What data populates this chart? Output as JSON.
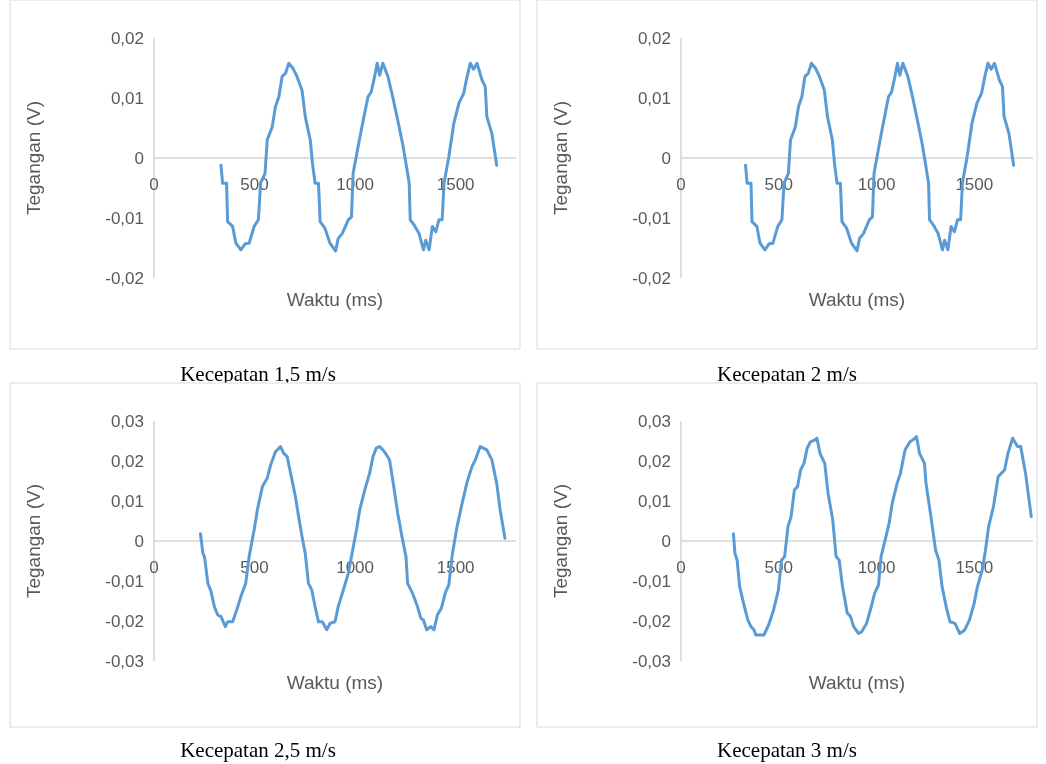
{
  "chart_data": [
    {
      "type": "line",
      "title": "Kecepatan 1,5 m/s",
      "xlabel": "Waktu (ms)",
      "ylabel": "Tegangan (V)",
      "color": "#5b9bd5",
      "xlim": [
        0,
        1800
      ],
      "xticks": [
        0,
        500,
        1000,
        1500
      ],
      "ylim": [
        -0.02,
        0.02
      ],
      "yticks": [
        {
          "value": -0.02,
          "label": "-0,02"
        },
        {
          "value": -0.01,
          "label": "-0,01"
        },
        {
          "value": 0,
          "label": "0"
        },
        {
          "value": 0.01,
          "label": "0,01"
        },
        {
          "value": 0.02,
          "label": "0,02"
        }
      ],
      "x": [
        333,
        341,
        361,
        366,
        391,
        407,
        432,
        453,
        473,
        498,
        519,
        530,
        552,
        563,
        588,
        604,
        621,
        637,
        654,
        670,
        690,
        711,
        736,
        752,
        777,
        788,
        801,
        818,
        826,
        850,
        875,
        903,
        916,
        936,
        966,
        982,
        990,
        1015,
        1031,
        1064,
        1080,
        1097,
        1110,
        1122,
        1138,
        1163,
        1187,
        1212,
        1236,
        1253,
        1269,
        1274,
        1294,
        1318,
        1340,
        1351,
        1368,
        1384,
        1401,
        1417,
        1433,
        1442,
        1466,
        1491,
        1516,
        1540,
        1557,
        1573,
        1589,
        1606,
        1631,
        1647,
        1655,
        1680,
        1704
      ],
      "values": [
        -0.0012,
        -0.0042,
        -0.0042,
        -0.0106,
        -0.0114,
        -0.0142,
        -0.0153,
        -0.0143,
        -0.0142,
        -0.0114,
        -0.0103,
        -0.0042,
        -0.0026,
        0.003,
        0.0052,
        0.0086,
        0.0102,
        0.0136,
        0.0141,
        0.0158,
        0.015,
        0.0136,
        0.0113,
        0.0069,
        0.003,
        -0.0009,
        -0.0042,
        -0.0042,
        -0.0106,
        -0.0117,
        -0.0142,
        -0.0155,
        -0.0134,
        -0.0126,
        -0.0103,
        -0.0098,
        -0.0026,
        0.0019,
        0.0047,
        0.0102,
        0.011,
        0.0136,
        0.0158,
        0.0138,
        0.0158,
        0.0136,
        0.0102,
        0.0063,
        0.0024,
        -0.0009,
        -0.0042,
        -0.0103,
        -0.0112,
        -0.0126,
        -0.0153,
        -0.0137,
        -0.0153,
        -0.0114,
        -0.0123,
        -0.0103,
        -0.0103,
        -0.0042,
        0.0002,
        0.0058,
        0.0091,
        0.0108,
        0.0136,
        0.0158,
        0.0148,
        0.0158,
        0.013,
        0.0119,
        0.0069,
        0.0041,
        -0.0012
      ]
    },
    {
      "type": "line",
      "title": "Kecepatan 2 m/s",
      "xlabel": "Waktu (ms)",
      "ylabel": "Tegangan (V)",
      "color": "#5b9bd5",
      "xlim": [
        0,
        1800
      ],
      "xticks": [
        0,
        500,
        1000,
        1500
      ],
      "ylim": [
        -0.02,
        0.02
      ],
      "yticks": [
        {
          "value": -0.02,
          "label": "-0,02"
        },
        {
          "value": -0.01,
          "label": "-0,01"
        },
        {
          "value": 0,
          "label": "0"
        },
        {
          "value": 0.01,
          "label": "0,01"
        },
        {
          "value": 0.02,
          "label": "0,02"
        }
      ],
      "x": [
        330,
        338,
        358,
        363,
        388,
        404,
        429,
        450,
        470,
        495,
        516,
        527,
        549,
        560,
        585,
        601,
        618,
        634,
        651,
        667,
        687,
        708,
        733,
        749,
        774,
        785,
        798,
        815,
        823,
        847,
        872,
        900,
        913,
        933,
        963,
        979,
        987,
        1012,
        1028,
        1061,
        1077,
        1094,
        1107,
        1119,
        1135,
        1160,
        1184,
        1209,
        1233,
        1250,
        1266,
        1271,
        1291,
        1315,
        1337,
        1348,
        1365,
        1381,
        1398,
        1414,
        1430,
        1439,
        1463,
        1488,
        1513,
        1537,
        1554,
        1570,
        1586,
        1603,
        1628,
        1644,
        1652,
        1677,
        1701
      ],
      "values": [
        -0.0012,
        -0.0042,
        -0.0042,
        -0.0106,
        -0.0114,
        -0.0142,
        -0.0153,
        -0.0143,
        -0.0142,
        -0.0114,
        -0.0103,
        -0.0042,
        -0.0026,
        0.003,
        0.0052,
        0.0086,
        0.0102,
        0.0136,
        0.0141,
        0.0158,
        0.015,
        0.0136,
        0.0113,
        0.0069,
        0.003,
        -0.0009,
        -0.0042,
        -0.0042,
        -0.0106,
        -0.0117,
        -0.0142,
        -0.0155,
        -0.0134,
        -0.0126,
        -0.0103,
        -0.0098,
        -0.0026,
        0.0019,
        0.0047,
        0.0102,
        0.011,
        0.0136,
        0.0158,
        0.0138,
        0.0158,
        0.0136,
        0.0102,
        0.0063,
        0.0024,
        -0.0009,
        -0.0042,
        -0.0103,
        -0.0112,
        -0.0126,
        -0.0153,
        -0.0137,
        -0.0153,
        -0.0114,
        -0.0123,
        -0.0103,
        -0.0103,
        -0.0042,
        0.0002,
        0.0058,
        0.0091,
        0.0108,
        0.0136,
        0.0158,
        0.0148,
        0.0158,
        0.013,
        0.0119,
        0.0069,
        0.0041,
        -0.0012
      ]
    },
    {
      "type": "line",
      "title": "Kecepatan 2,5 m/s",
      "xlabel": "Waktu (ms)",
      "ylabel": "Tegangan (V)",
      "color": "#5b9bd5",
      "xlim": [
        0,
        1800
      ],
      "xticks": [
        0,
        500,
        1000,
        1500
      ],
      "ylim": [
        -0.03,
        0.03
      ],
      "yticks": [
        {
          "value": -0.03,
          "label": "-0,03"
        },
        {
          "value": -0.02,
          "label": "-0,02"
        },
        {
          "value": -0.01,
          "label": "-0,01"
        },
        {
          "value": 0,
          "label": "0"
        },
        {
          "value": 0.01,
          "label": "0,01"
        },
        {
          "value": 0.02,
          "label": "0,02"
        },
        {
          "value": 0.03,
          "label": "0,03"
        }
      ],
      "x": [
        231,
        243,
        251,
        268,
        284,
        300,
        317,
        333,
        355,
        366,
        391,
        411,
        432,
        456,
        473,
        498,
        514,
        539,
        563,
        580,
        604,
        629,
        645,
        662,
        686,
        703,
        719,
        736,
        752,
        768,
        785,
        801,
        818,
        837,
        859,
        875,
        900,
        916,
        941,
        966,
        982,
        1007,
        1023,
        1048,
        1072,
        1089,
        1105,
        1122,
        1146,
        1171,
        1187,
        1212,
        1236,
        1253,
        1261,
        1286,
        1310,
        1327,
        1340,
        1356,
        1376,
        1392,
        1409,
        1429,
        1450,
        1466,
        1483,
        1507,
        1532,
        1557,
        1581,
        1598,
        1622,
        1655,
        1680,
        1704,
        1721,
        1745
      ],
      "values": [
        0.0018,
        -0.0031,
        -0.0039,
        -0.0106,
        -0.0127,
        -0.0164,
        -0.0185,
        -0.0189,
        -0.0214,
        -0.0202,
        -0.0202,
        -0.0173,
        -0.0139,
        -0.0106,
        -0.0039,
        0.0028,
        0.0078,
        0.0136,
        0.0157,
        0.019,
        0.0223,
        0.0236,
        0.0219,
        0.0211,
        0.0153,
        0.0111,
        0.0061,
        0.0011,
        -0.0031,
        -0.0106,
        -0.0123,
        -0.0164,
        -0.0202,
        -0.0202,
        -0.0222,
        -0.0206,
        -0.0202,
        -0.0164,
        -0.0123,
        -0.0081,
        -0.0039,
        0.0028,
        0.0078,
        0.0128,
        0.0169,
        0.0211,
        0.0232,
        0.0236,
        0.0223,
        0.0203,
        0.0153,
        0.0069,
        0.0003,
        -0.0039,
        -0.0106,
        -0.0131,
        -0.0164,
        -0.0193,
        -0.0198,
        -0.0222,
        -0.0214,
        -0.0222,
        -0.0185,
        -0.0168,
        -0.0127,
        -0.011,
        -0.0035,
        0.0036,
        0.0094,
        0.0148,
        0.0186,
        0.0203,
        0.0236,
        0.0228,
        0.0203,
        0.0144,
        0.0078,
        0.0007
      ]
    },
    {
      "type": "line",
      "title": "Kecepatan 3 m/s",
      "xlabel": "Waktu (ms)",
      "ylabel": "Tegangan (V)",
      "color": "#5b9bd5",
      "xlim": [
        0,
        1800
      ],
      "xticks": [
        0,
        500,
        1000,
        1500
      ],
      "ylim": [
        -0.03,
        0.03
      ],
      "yticks": [
        {
          "value": -0.03,
          "label": "-0,03"
        },
        {
          "value": -0.02,
          "label": "-0,02"
        },
        {
          "value": -0.01,
          "label": "-0,01"
        },
        {
          "value": 0,
          "label": "0"
        },
        {
          "value": 0.01,
          "label": "0,01"
        },
        {
          "value": 0.02,
          "label": "0,02"
        },
        {
          "value": 0.03,
          "label": "0,03"
        }
      ],
      "x": [
        268,
        276,
        287,
        300,
        320,
        342,
        358,
        374,
        383,
        424,
        448,
        473,
        498,
        514,
        530,
        547,
        563,
        580,
        596,
        612,
        629,
        645,
        662,
        686,
        695,
        711,
        735,
        752,
        776,
        793,
        809,
        826,
        850,
        867,
        883,
        907,
        924,
        949,
        973,
        990,
        1010,
        1023,
        1048,
        1064,
        1080,
        1105,
        1122,
        1146,
        1171,
        1187,
        1204,
        1220,
        1245,
        1253,
        1278,
        1302,
        1319,
        1335,
        1360,
        1376,
        1401,
        1425,
        1450,
        1475,
        1499,
        1516,
        1540,
        1557,
        1573,
        1598,
        1622,
        1655,
        1672,
        1696,
        1721,
        1737,
        1762,
        1791
      ],
      "values": [
        0.0018,
        -0.0031,
        -0.0048,
        -0.0114,
        -0.0156,
        -0.0198,
        -0.0214,
        -0.0223,
        -0.0235,
        -0.0235,
        -0.021,
        -0.0173,
        -0.0123,
        -0.0048,
        -0.0039,
        0.0036,
        0.0061,
        0.0128,
        0.0136,
        0.0178,
        0.0194,
        0.0232,
        0.0248,
        0.0253,
        0.0257,
        0.0219,
        0.0194,
        0.0119,
        0.0053,
        -0.0039,
        -0.0048,
        -0.0114,
        -0.018,
        -0.0189,
        -0.0214,
        -0.0231,
        -0.0227,
        -0.0206,
        -0.0164,
        -0.0131,
        -0.011,
        -0.0039,
        0.0011,
        0.0044,
        0.0094,
        0.0144,
        0.0169,
        0.0228,
        0.0248,
        0.0253,
        0.0261,
        0.0219,
        0.0194,
        0.0144,
        0.0061,
        -0.0023,
        -0.0048,
        -0.0114,
        -0.0173,
        -0.0202,
        -0.0206,
        -0.0231,
        -0.0223,
        -0.0198,
        -0.0156,
        -0.0114,
        -0.0073,
        -0.0023,
        0.0036,
        0.0086,
        0.0161,
        0.0178,
        0.0219,
        0.0257,
        0.0236,
        0.0236,
        0.0169,
        0.0061
      ]
    }
  ]
}
